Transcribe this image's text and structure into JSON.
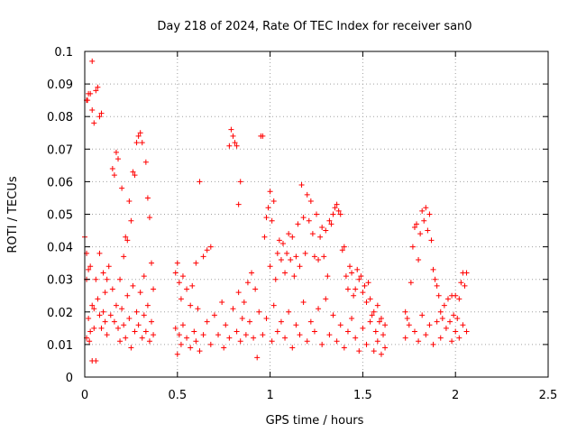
{
  "chart_data": {
    "type": "scatter",
    "title": "Day 218 of 2024, Rate Of TEC Index for receiver san0",
    "xlabel": "GPS time / hours",
    "ylabel": "ROTI / TECUs",
    "xlim": [
      0,
      2.5
    ],
    "ylim": [
      0,
      0.1
    ],
    "xticks": [
      "0",
      "0.5",
      "1",
      "1.5",
      "2",
      "2.5"
    ],
    "yticks": [
      "0",
      "0.01",
      "0.02",
      "0.03",
      "0.04",
      "0.05",
      "0.06",
      "0.07",
      "0.08",
      "0.09",
      "0.1"
    ],
    "grid": true,
    "marker": "+",
    "color": "#ff0000",
    "series": [
      {
        "points": [
          [
            0.0,
            0.043
          ],
          [
            0.01,
            0.085
          ],
          [
            0.01,
            0.038
          ],
          [
            0.01,
            0.03
          ],
          [
            0.01,
            0.012
          ],
          [
            0.015,
            0.085
          ],
          [
            0.02,
            0.087
          ],
          [
            0.02,
            0.033
          ],
          [
            0.02,
            0.018
          ],
          [
            0.025,
            0.011
          ],
          [
            0.03,
            0.087
          ],
          [
            0.03,
            0.034
          ],
          [
            0.03,
            0.014
          ],
          [
            0.04,
            0.097
          ],
          [
            0.04,
            0.082
          ],
          [
            0.04,
            0.022
          ],
          [
            0.04,
            0.005
          ],
          [
            0.05,
            0.078
          ],
          [
            0.05,
            0.021
          ],
          [
            0.05,
            0.015
          ],
          [
            0.06,
            0.088
          ],
          [
            0.06,
            0.03
          ],
          [
            0.06,
            0.005
          ],
          [
            0.07,
            0.089
          ],
          [
            0.07,
            0.024
          ],
          [
            0.08,
            0.08
          ],
          [
            0.08,
            0.038
          ],
          [
            0.08,
            0.019
          ],
          [
            0.09,
            0.081
          ],
          [
            0.09,
            0.015
          ],
          [
            0.1,
            0.032
          ],
          [
            0.1,
            0.02
          ],
          [
            0.11,
            0.026
          ],
          [
            0.11,
            0.017
          ],
          [
            0.12,
            0.03
          ],
          [
            0.12,
            0.013
          ],
          [
            0.13,
            0.034
          ],
          [
            0.14,
            0.019
          ],
          [
            0.15,
            0.064
          ],
          [
            0.15,
            0.027
          ],
          [
            0.16,
            0.062
          ],
          [
            0.16,
            0.017
          ],
          [
            0.17,
            0.069
          ],
          [
            0.17,
            0.022
          ],
          [
            0.18,
            0.067
          ],
          [
            0.18,
            0.015
          ],
          [
            0.19,
            0.03
          ],
          [
            0.19,
            0.011
          ],
          [
            0.2,
            0.058
          ],
          [
            0.2,
            0.021
          ],
          [
            0.21,
            0.037
          ],
          [
            0.21,
            0.016
          ],
          [
            0.22,
            0.043
          ],
          [
            0.22,
            0.012
          ],
          [
            0.23,
            0.042
          ],
          [
            0.23,
            0.025
          ],
          [
            0.24,
            0.054
          ],
          [
            0.24,
            0.018
          ],
          [
            0.25,
            0.048
          ],
          [
            0.25,
            0.009
          ],
          [
            0.26,
            0.063
          ],
          [
            0.26,
            0.028
          ],
          [
            0.27,
            0.062
          ],
          [
            0.27,
            0.014
          ],
          [
            0.28,
            0.072
          ],
          [
            0.28,
            0.02
          ],
          [
            0.29,
            0.074
          ],
          [
            0.29,
            0.016
          ],
          [
            0.3,
            0.075
          ],
          [
            0.3,
            0.026
          ],
          [
            0.31,
            0.072
          ],
          [
            0.31,
            0.012
          ],
          [
            0.32,
            0.031
          ],
          [
            0.32,
            0.019
          ],
          [
            0.33,
            0.066
          ],
          [
            0.33,
            0.014
          ],
          [
            0.34,
            0.055
          ],
          [
            0.34,
            0.022
          ],
          [
            0.35,
            0.049
          ],
          [
            0.35,
            0.011
          ],
          [
            0.36,
            0.035
          ],
          [
            0.36,
            0.017
          ],
          [
            0.37,
            0.027
          ],
          [
            0.37,
            0.013
          ],
          [
            0.49,
            0.032
          ],
          [
            0.49,
            0.015
          ],
          [
            0.5,
            0.035
          ],
          [
            0.5,
            0.007
          ],
          [
            0.51,
            0.029
          ],
          [
            0.51,
            0.013
          ],
          [
            0.52,
            0.024
          ],
          [
            0.52,
            0.01
          ],
          [
            0.53,
            0.031
          ],
          [
            0.53,
            0.016
          ],
          [
            0.55,
            0.027
          ],
          [
            0.55,
            0.012
          ],
          [
            0.57,
            0.022
          ],
          [
            0.57,
            0.009
          ],
          [
            0.58,
            0.028
          ],
          [
            0.59,
            0.014
          ],
          [
            0.6,
            0.035
          ],
          [
            0.6,
            0.011
          ],
          [
            0.61,
            0.021
          ],
          [
            0.62,
            0.06
          ],
          [
            0.62,
            0.008
          ],
          [
            0.64,
            0.037
          ],
          [
            0.64,
            0.013
          ],
          [
            0.66,
            0.039
          ],
          [
            0.66,
            0.017
          ],
          [
            0.68,
            0.04
          ],
          [
            0.68,
            0.01
          ],
          [
            0.7,
            0.019
          ],
          [
            0.72,
            0.013
          ],
          [
            0.74,
            0.023
          ],
          [
            0.75,
            0.009
          ],
          [
            0.76,
            0.016
          ],
          [
            0.78,
            0.071
          ],
          [
            0.78,
            0.012
          ],
          [
            0.79,
            0.076
          ],
          [
            0.8,
            0.074
          ],
          [
            0.8,
            0.021
          ],
          [
            0.81,
            0.072
          ],
          [
            0.82,
            0.071
          ],
          [
            0.82,
            0.014
          ],
          [
            0.83,
            0.053
          ],
          [
            0.83,
            0.026
          ],
          [
            0.84,
            0.06
          ],
          [
            0.84,
            0.011
          ],
          [
            0.85,
            0.018
          ],
          [
            0.86,
            0.023
          ],
          [
            0.87,
            0.013
          ],
          [
            0.88,
            0.029
          ],
          [
            0.89,
            0.017
          ],
          [
            0.9,
            0.032
          ],
          [
            0.91,
            0.012
          ],
          [
            0.92,
            0.027
          ],
          [
            0.93,
            0.006
          ],
          [
            0.94,
            0.02
          ],
          [
            0.95,
            0.074
          ],
          [
            0.96,
            0.074
          ],
          [
            0.96,
            0.013
          ],
          [
            0.97,
            0.043
          ],
          [
            0.98,
            0.049
          ],
          [
            0.98,
            0.018
          ],
          [
            0.99,
            0.052
          ],
          [
            1.0,
            0.057
          ],
          [
            1.0,
            0.034
          ],
          [
            1.01,
            0.048
          ],
          [
            1.01,
            0.011
          ],
          [
            1.02,
            0.054
          ],
          [
            1.02,
            0.022
          ],
          [
            1.03,
            0.03
          ],
          [
            1.04,
            0.038
          ],
          [
            1.04,
            0.014
          ],
          [
            1.05,
            0.042
          ],
          [
            1.06,
            0.036
          ],
          [
            1.06,
            0.017
          ],
          [
            1.07,
            0.041
          ],
          [
            1.08,
            0.032
          ],
          [
            1.08,
            0.012
          ],
          [
            1.09,
            0.038
          ],
          [
            1.1,
            0.044
          ],
          [
            1.1,
            0.02
          ],
          [
            1.11,
            0.036
          ],
          [
            1.12,
            0.043
          ],
          [
            1.12,
            0.009
          ],
          [
            1.13,
            0.031
          ],
          [
            1.14,
            0.037
          ],
          [
            1.14,
            0.016
          ],
          [
            1.15,
            0.047
          ],
          [
            1.16,
            0.034
          ],
          [
            1.16,
            0.013
          ],
          [
            1.17,
            0.059
          ],
          [
            1.18,
            0.049
          ],
          [
            1.18,
            0.023
          ],
          [
            1.19,
            0.038
          ],
          [
            1.2,
            0.056
          ],
          [
            1.2,
            0.011
          ],
          [
            1.21,
            0.048
          ],
          [
            1.22,
            0.054
          ],
          [
            1.22,
            0.017
          ],
          [
            1.23,
            0.044
          ],
          [
            1.24,
            0.037
          ],
          [
            1.24,
            0.014
          ],
          [
            1.25,
            0.05
          ],
          [
            1.26,
            0.036
          ],
          [
            1.26,
            0.021
          ],
          [
            1.27,
            0.043
          ],
          [
            1.28,
            0.046
          ],
          [
            1.28,
            0.01
          ],
          [
            1.29,
            0.037
          ],
          [
            1.3,
            0.045
          ],
          [
            1.3,
            0.024
          ],
          [
            1.31,
            0.031
          ],
          [
            1.32,
            0.048
          ],
          [
            1.32,
            0.013
          ],
          [
            1.33,
            0.047
          ],
          [
            1.34,
            0.05
          ],
          [
            1.34,
            0.019
          ],
          [
            1.35,
            0.052
          ],
          [
            1.36,
            0.053
          ],
          [
            1.36,
            0.011
          ],
          [
            1.37,
            0.051
          ],
          [
            1.38,
            0.05
          ],
          [
            1.38,
            0.016
          ],
          [
            1.39,
            0.039
          ],
          [
            1.4,
            0.04
          ],
          [
            1.4,
            0.009
          ],
          [
            1.41,
            0.031
          ],
          [
            1.42,
            0.027
          ],
          [
            1.42,
            0.014
          ],
          [
            1.43,
            0.034
          ],
          [
            1.44,
            0.032
          ],
          [
            1.44,
            0.018
          ],
          [
            1.45,
            0.025
          ],
          [
            1.46,
            0.027
          ],
          [
            1.46,
            0.012
          ],
          [
            1.47,
            0.033
          ],
          [
            1.48,
            0.03
          ],
          [
            1.48,
            0.008
          ],
          [
            1.49,
            0.031
          ],
          [
            1.5,
            0.026
          ],
          [
            1.5,
            0.015
          ],
          [
            1.51,
            0.028
          ],
          [
            1.52,
            0.023
          ],
          [
            1.52,
            0.01
          ],
          [
            1.53,
            0.029
          ],
          [
            1.54,
            0.024
          ],
          [
            1.54,
            0.017
          ],
          [
            1.55,
            0.019
          ],
          [
            1.56,
            0.02
          ],
          [
            1.56,
            0.008
          ],
          [
            1.57,
            0.014
          ],
          [
            1.58,
            0.022
          ],
          [
            1.58,
            0.011
          ],
          [
            1.59,
            0.017
          ],
          [
            1.6,
            0.018
          ],
          [
            1.6,
            0.007
          ],
          [
            1.61,
            0.013
          ],
          [
            1.62,
            0.016
          ],
          [
            1.62,
            0.009
          ],
          [
            1.73,
            0.02
          ],
          [
            1.73,
            0.012
          ],
          [
            1.74,
            0.018
          ],
          [
            1.75,
            0.016
          ],
          [
            1.76,
            0.029
          ],
          [
            1.77,
            0.04
          ],
          [
            1.78,
            0.046
          ],
          [
            1.78,
            0.014
          ],
          [
            1.79,
            0.047
          ],
          [
            1.8,
            0.036
          ],
          [
            1.8,
            0.011
          ],
          [
            1.81,
            0.044
          ],
          [
            1.82,
            0.051
          ],
          [
            1.82,
            0.019
          ],
          [
            1.83,
            0.048
          ],
          [
            1.84,
            0.052
          ],
          [
            1.84,
            0.013
          ],
          [
            1.85,
            0.045
          ],
          [
            1.86,
            0.05
          ],
          [
            1.86,
            0.016
          ],
          [
            1.87,
            0.042
          ],
          [
            1.88,
            0.033
          ],
          [
            1.88,
            0.01
          ],
          [
            1.89,
            0.03
          ],
          [
            1.9,
            0.028
          ],
          [
            1.9,
            0.017
          ],
          [
            1.91,
            0.025
          ],
          [
            1.92,
            0.02
          ],
          [
            1.92,
            0.012
          ],
          [
            1.93,
            0.018
          ],
          [
            1.94,
            0.022
          ],
          [
            1.95,
            0.015
          ],
          [
            1.96,
            0.024
          ],
          [
            1.97,
            0.017
          ],
          [
            1.98,
            0.025
          ],
          [
            1.98,
            0.011
          ],
          [
            1.99,
            0.019
          ],
          [
            2.0,
            0.025
          ],
          [
            2.0,
            0.014
          ],
          [
            2.01,
            0.018
          ],
          [
            2.02,
            0.024
          ],
          [
            2.02,
            0.012
          ],
          [
            2.03,
            0.029
          ],
          [
            2.04,
            0.032
          ],
          [
            2.04,
            0.016
          ],
          [
            2.05,
            0.028
          ],
          [
            2.06,
            0.032
          ],
          [
            2.06,
            0.014
          ]
        ]
      }
    ]
  }
}
